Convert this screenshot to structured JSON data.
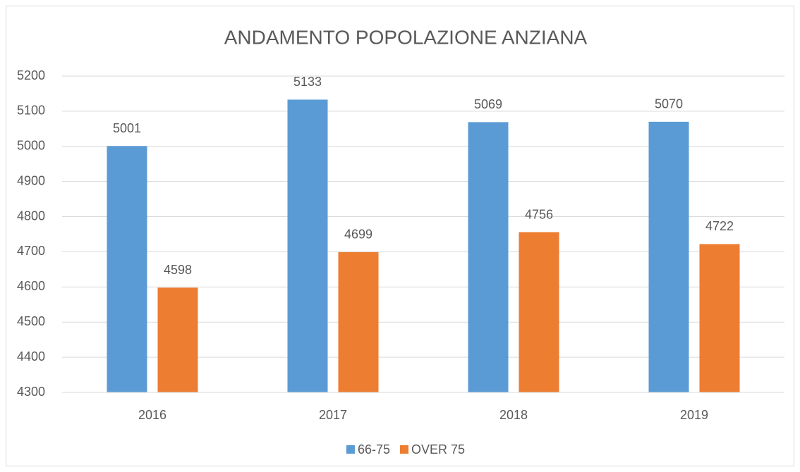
{
  "chart_data": {
    "type": "bar",
    "title": "ANDAMENTO POPOLAZIONE ANZIANA",
    "categories": [
      "2016",
      "2017",
      "2018",
      "2019"
    ],
    "series": [
      {
        "name": "66-75",
        "color": "#5b9bd5",
        "values": [
          5001,
          5133,
          5069,
          5070
        ]
      },
      {
        "name": "OVER 75",
        "color": "#ed7d31",
        "values": [
          4598,
          4699,
          4756,
          4722
        ]
      }
    ],
    "ylim": [
      4300,
      5200
    ],
    "yticks": [
      4300,
      4400,
      4500,
      4600,
      4700,
      4800,
      4900,
      5000,
      5100,
      5200
    ],
    "grid": true,
    "legend": "bottom"
  }
}
